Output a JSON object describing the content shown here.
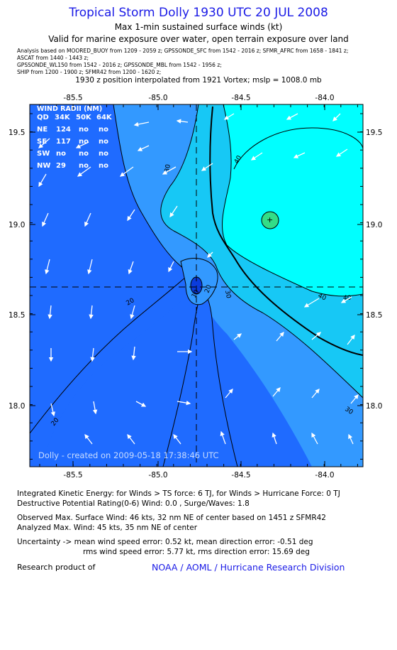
{
  "header": {
    "title": "Tropical Storm Dolly 1930 UTC 20 JUL 2008",
    "subtitle1": "Max 1-min sustained surface winds (kt)",
    "subtitle2": "Valid for marine exposure over water, open terrain exposure over land",
    "analysis_lines": [
      "Analysis based on  MOORED_BUOY from 1209 - 2059 z;  GPSSONDE_SFC from 1542 - 2016 z;  SFMR_AFRC from 1658 - 1841 z;",
      "ASCAT from 1440 - 1443 z;",
      "GPSSONDE_WL150 from 1542 - 2016 z;  GPSSONDE_MBL from 1542 - 1956 z;",
      "SHIP from 1200 - 1900 z;  SFMR42 from 1200 - 1620 z;"
    ],
    "position_line": "1930 z position interpolated from 1921 Vortex; mslp = 1008.0 mb"
  },
  "map": {
    "lon_ticks": [
      "-85.5",
      "-85.0",
      "-84.5",
      "-84.0"
    ],
    "lat_ticks": [
      "19.5",
      "19.0",
      "18.5",
      "18.0"
    ],
    "contour_labels": [
      "40",
      "40",
      "40",
      "30",
      "30",
      "30",
      "20",
      "20",
      "20",
      "10"
    ],
    "wind_radii": {
      "title": "WIND RADII (NM)",
      "header": [
        "QD",
        "34K",
        "50K",
        "64K"
      ],
      "rows": [
        [
          "NE",
          "124",
          "no",
          "no"
        ],
        [
          "SE",
          "117",
          "no",
          "no"
        ],
        [
          "SW",
          "no",
          "no",
          "no"
        ],
        [
          "NW",
          "29",
          "no",
          "no"
        ]
      ]
    },
    "credit": "Dolly - created on 2009-05-18 17:38:46 UTC",
    "colors": {
      "band_lt20": "#1f6bff",
      "band_20_30": "#3399ff",
      "band_30_40": "#17c8f5",
      "band_40_50": "#00ffff",
      "band_max": "#33dd88",
      "vortex_core": "#0a3cdc"
    }
  },
  "info": {
    "ike": "Integrated Kinetic Energy:  for Winds > TS force: 6 TJ,  for Winds > Hurricane Force: 0 TJ",
    "dpr": "Destructive Potential Rating(0-6)   Wind: 0.0 , Surge/Waves: 1.8",
    "obs_max": "Observed Max. Surface Wind: 46 kts, 32 nm NE of center based on 1451 z SFMR42",
    "ana_max": "Analyzed Max. Wind: 45 kts, 35 nm NE of center",
    "uncert1": "Uncertainty -> mean wind speed error: 0.52 kt,   mean direction error:  -0.51 deg",
    "uncert2": "rms wind speed error: 5.77 kt,   rms direction error: 15.69 deg"
  },
  "footer": {
    "research": "Research product of",
    "org": "NOAA / AOML / Hurricane Research Division"
  }
}
